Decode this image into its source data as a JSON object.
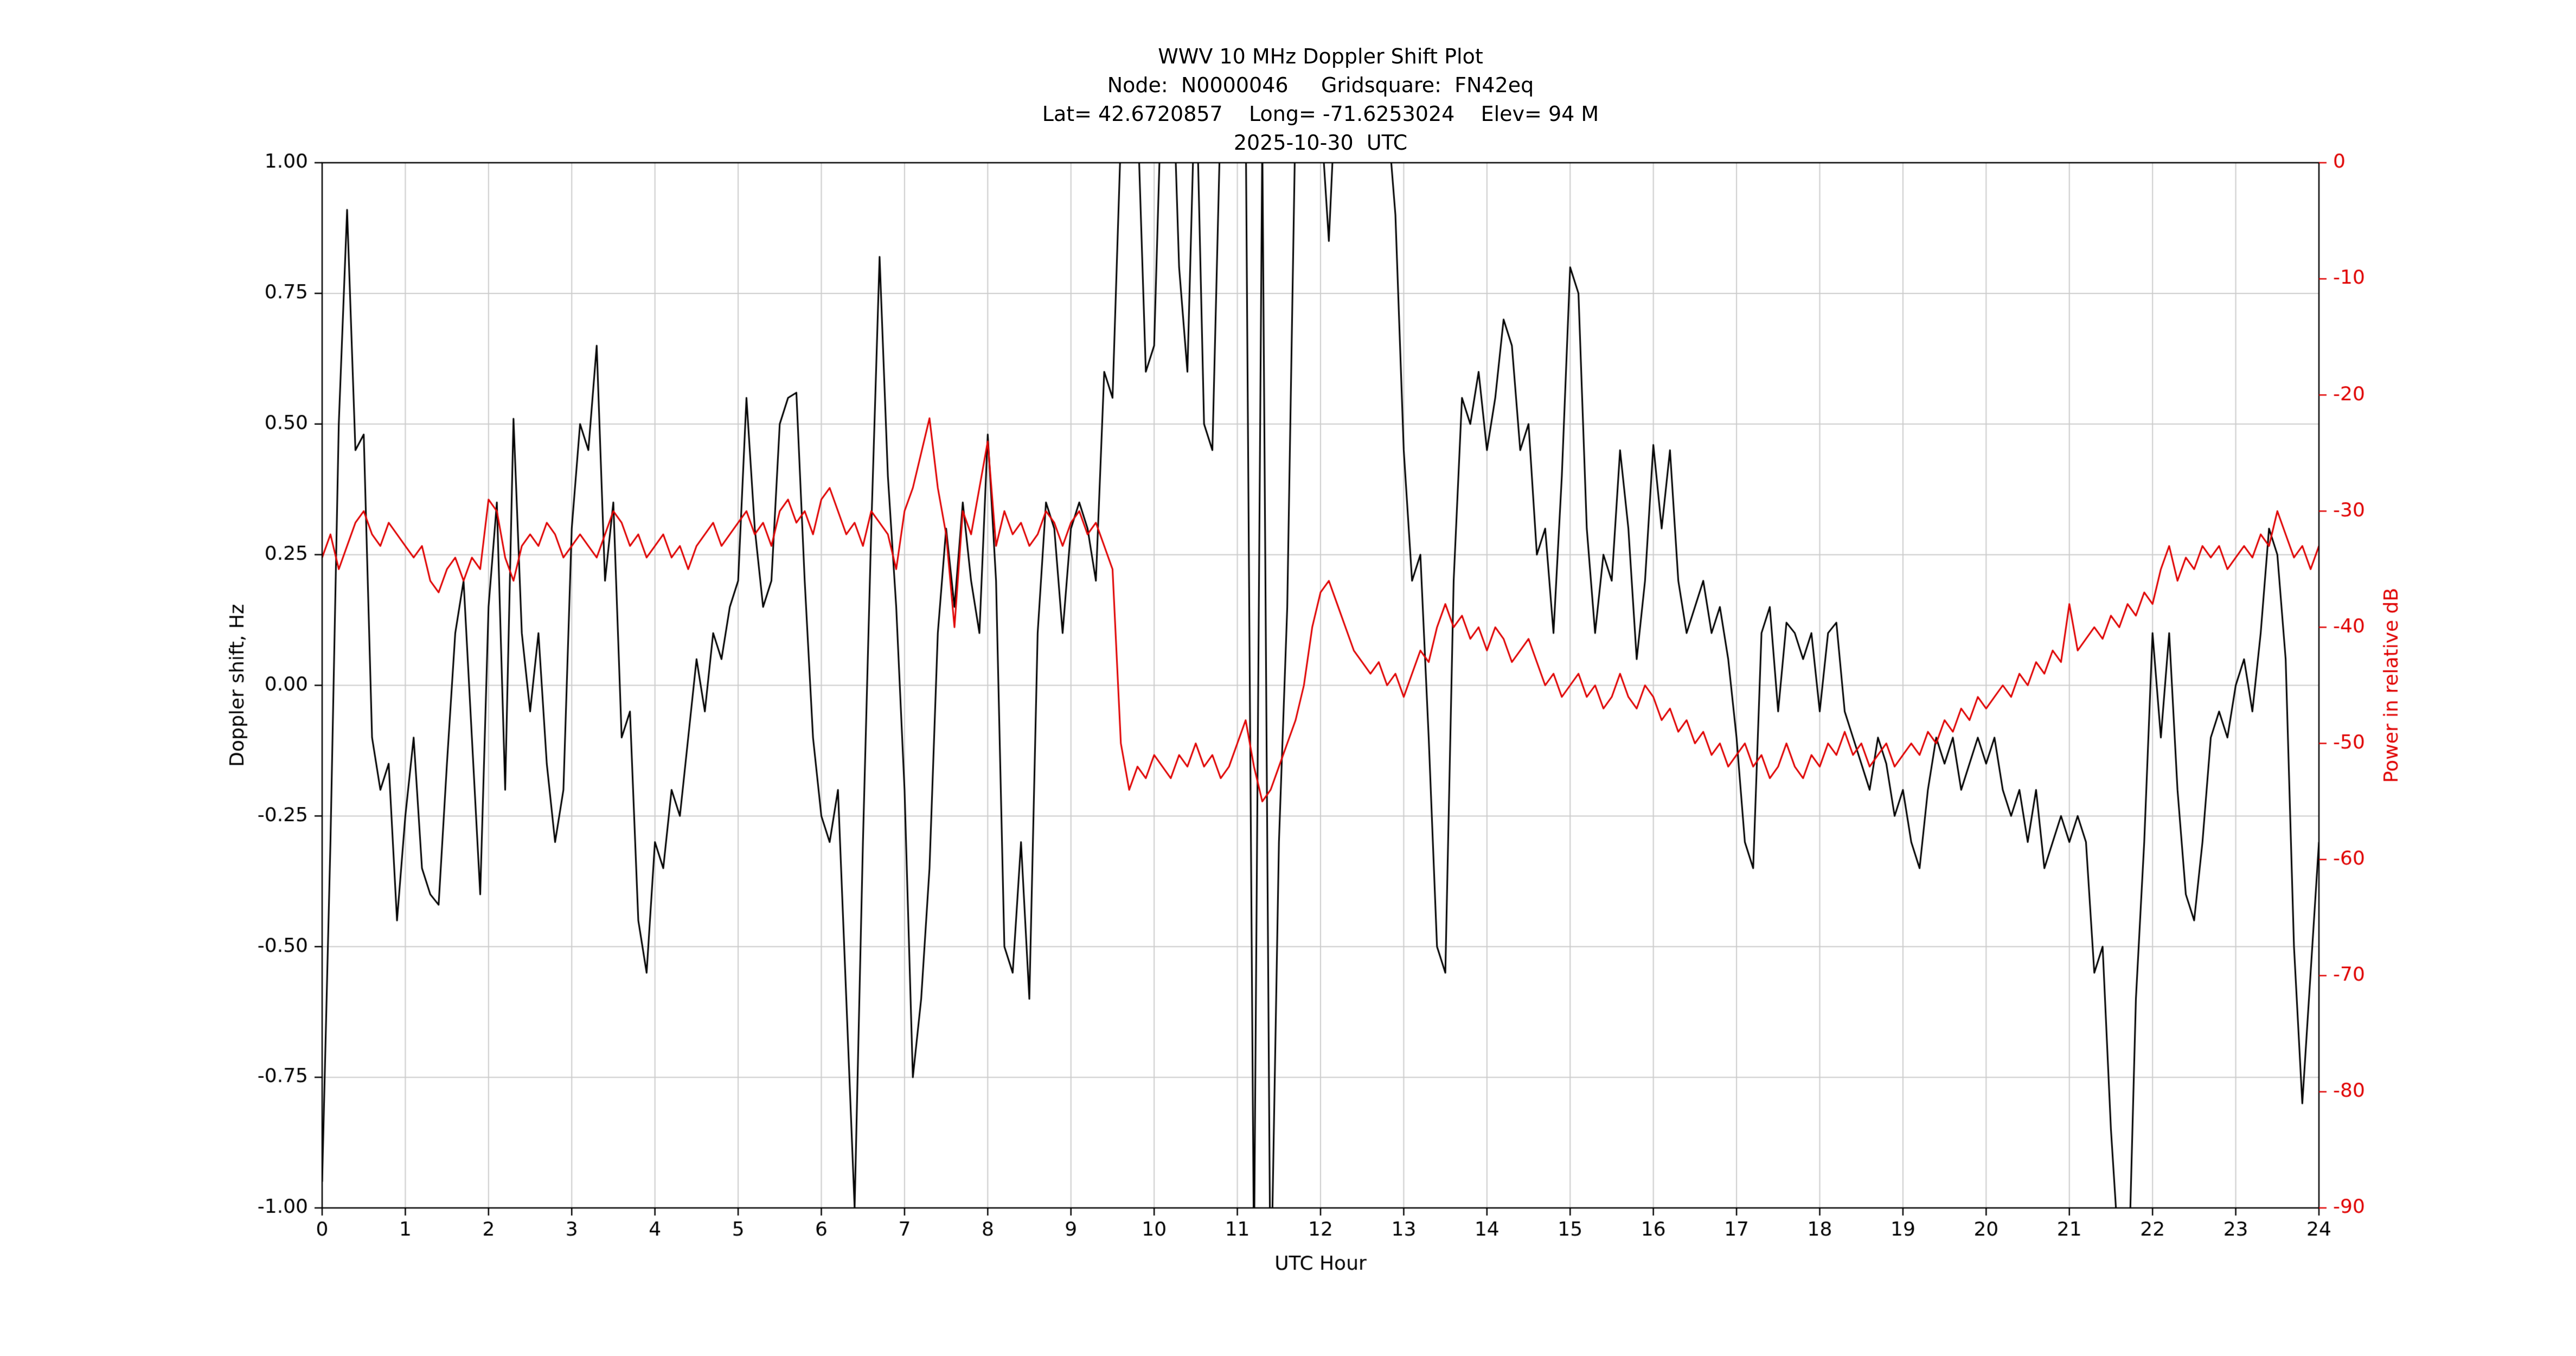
{
  "header": {
    "title": "WWV 10 MHz Doppler Shift Plot",
    "node_line": "Node:  N0000046     Gridsquare:  FN42eq",
    "location_line": "Lat= 42.6720857    Long= -71.6253024    Elev= 94 M",
    "date_line": "2025-10-30  UTC"
  },
  "colors": {
    "background": "#ffffff",
    "doppler_series": "#000000",
    "power_series": "#e00000",
    "right_axis": "#e00000",
    "grid": "#cccccc",
    "spine": "#000000"
  },
  "chart_data": {
    "type": "line",
    "title": "WWV 10 MHz Doppler Shift Plot",
    "xlabel": "UTC Hour",
    "ylabel_left": "Doppler shift, Hz",
    "ylabel_right": "Power in relative dB",
    "x_range": [
      0,
      24
    ],
    "y_left_range": [
      -1.0,
      1.0
    ],
    "y_right_range": [
      -90,
      0
    ],
    "grid": true,
    "legend": "none",
    "grid_color": "#cccccc",
    "right_axis_color": "#e00000",
    "x_ticks": [
      0,
      1,
      2,
      3,
      4,
      5,
      6,
      7,
      8,
      9,
      10,
      11,
      12,
      13,
      14,
      15,
      16,
      17,
      18,
      19,
      20,
      21,
      22,
      23,
      24
    ],
    "x_tick_labels": [
      "0",
      "1",
      "2",
      "3",
      "4",
      "5",
      "6",
      "7",
      "8",
      "9",
      "10",
      "11",
      "12",
      "13",
      "14",
      "15",
      "16",
      "17",
      "18",
      "19",
      "20",
      "21",
      "22",
      "23",
      "24"
    ],
    "y_left_ticks": [
      1.0,
      0.75,
      0.5,
      0.25,
      0.0,
      -0.25,
      -0.5,
      -0.75,
      -1.0
    ],
    "y_left_tick_labels": [
      "1.00",
      "0.75",
      "0.50",
      "0.25",
      "0.00",
      "-0.25",
      "-0.50",
      "-0.75",
      "-1.00"
    ],
    "y_right_ticks": [
      0,
      -10,
      -20,
      -30,
      -40,
      -50,
      -60,
      -70,
      -80,
      -90
    ],
    "y_right_tick_labels": [
      "0",
      "-10",
      "-20",
      "-30",
      "-40",
      "-50",
      "-60",
      "-70",
      "-80",
      "-90"
    ],
    "series": [
      {
        "name": "doppler_shift_hz",
        "axis": "left",
        "color": "#000000",
        "width": 3,
        "x_start": 0,
        "x_step": 0.1,
        "values": [
          -0.95,
          -0.3,
          0.5,
          0.91,
          0.45,
          0.48,
          -0.1,
          -0.2,
          -0.15,
          -0.45,
          -0.25,
          -0.1,
          -0.35,
          -0.4,
          -0.42,
          -0.15,
          0.1,
          0.2,
          -0.1,
          -0.4,
          0.15,
          0.35,
          -0.2,
          0.51,
          0.1,
          -0.05,
          0.1,
          -0.15,
          -0.3,
          -0.2,
          0.3,
          0.5,
          0.45,
          0.65,
          0.2,
          0.35,
          -0.1,
          -0.05,
          -0.45,
          -0.55,
          -0.3,
          -0.35,
          -0.2,
          -0.25,
          -0.1,
          0.05,
          -0.05,
          0.1,
          0.05,
          0.15,
          0.2,
          0.55,
          0.3,
          0.15,
          0.2,
          0.5,
          0.55,
          0.56,
          0.2,
          -0.1,
          -0.25,
          -0.3,
          -0.2,
          -0.6,
          -1.0,
          -0.3,
          0.3,
          0.82,
          0.4,
          0.15,
          -0.2,
          -0.75,
          -0.6,
          -0.35,
          0.1,
          0.3,
          0.15,
          0.35,
          0.2,
          0.1,
          0.48,
          0.2,
          -0.5,
          -0.55,
          -0.3,
          -0.6,
          0.1,
          0.35,
          0.3,
          0.1,
          0.3,
          0.35,
          0.3,
          0.2,
          0.6,
          0.55,
          1.05,
          1.2,
          1.1,
          0.6,
          0.65,
          1.2,
          1.3,
          0.8,
          0.6,
          1.2,
          0.5,
          0.45,
          1.1,
          1.3,
          1.2,
          1.1,
          -1.1,
          1.05,
          -1.2,
          -0.3,
          0.15,
          1.1,
          1.3,
          1.2,
          1.1,
          0.85,
          1.2,
          1.3,
          1.1,
          1.25,
          1.3,
          1.2,
          1.1,
          0.9,
          0.45,
          0.2,
          0.25,
          -0.1,
          -0.5,
          -0.55,
          0.2,
          0.55,
          0.5,
          0.6,
          0.45,
          0.55,
          0.7,
          0.65,
          0.45,
          0.5,
          0.25,
          0.3,
          0.1,
          0.4,
          0.8,
          0.75,
          0.3,
          0.1,
          0.25,
          0.2,
          0.45,
          0.3,
          0.05,
          0.2,
          0.46,
          0.3,
          0.45,
          0.2,
          0.1,
          0.15,
          0.2,
          0.1,
          0.15,
          0.05,
          -0.1,
          -0.3,
          -0.35,
          0.1,
          0.15,
          -0.05,
          0.12,
          0.1,
          0.05,
          0.1,
          -0.05,
          0.1,
          0.12,
          -0.05,
          -0.1,
          -0.15,
          -0.2,
          -0.1,
          -0.15,
          -0.25,
          -0.2,
          -0.3,
          -0.35,
          -0.2,
          -0.1,
          -0.15,
          -0.1,
          -0.2,
          -0.15,
          -0.1,
          -0.15,
          -0.1,
          -0.2,
          -0.25,
          -0.2,
          -0.3,
          -0.2,
          -0.35,
          -0.3,
          -0.25,
          -0.3,
          -0.25,
          -0.3,
          -0.55,
          -0.5,
          -0.85,
          -1.1,
          -1.2,
          -0.6,
          -0.3,
          0.1,
          -0.1,
          0.1,
          -0.2,
          -0.4,
          -0.45,
          -0.3,
          -0.1,
          -0.05,
          -0.1,
          0.0,
          0.05,
          -0.05,
          0.1,
          0.3,
          0.25,
          0.05,
          -0.5,
          -0.8,
          -0.55,
          -0.3
        ]
      },
      {
        "name": "power_relative_db",
        "axis": "right",
        "color": "#e00000",
        "width": 3,
        "x_start": 0,
        "x_step": 0.1,
        "values": [
          -34,
          -32,
          -35,
          -33,
          -31,
          -30,
          -32,
          -33,
          -31,
          -32,
          -33,
          -34,
          -33,
          -36,
          -37,
          -35,
          -34,
          -36,
          -34,
          -35,
          -29,
          -30,
          -34,
          -36,
          -33,
          -32,
          -33,
          -31,
          -32,
          -34,
          -33,
          -32,
          -33,
          -34,
          -32,
          -30,
          -31,
          -33,
          -32,
          -34,
          -33,
          -32,
          -34,
          -33,
          -35,
          -33,
          -32,
          -31,
          -33,
          -32,
          -31,
          -30,
          -32,
          -31,
          -33,
          -30,
          -29,
          -31,
          -30,
          -32,
          -29,
          -28,
          -30,
          -32,
          -31,
          -33,
          -30,
          -31,
          -32,
          -35,
          -30,
          -28,
          -25,
          -22,
          -28,
          -32,
          -40,
          -30,
          -32,
          -28,
          -24,
          -33,
          -30,
          -32,
          -31,
          -33,
          -32,
          -30,
          -31,
          -33,
          -31,
          -30,
          -32,
          -31,
          -33,
          -35,
          -50,
          -54,
          -52,
          -53,
          -51,
          -52,
          -53,
          -51,
          -52,
          -50,
          -52,
          -51,
          -53,
          -52,
          -50,
          -48,
          -52,
          -55,
          -54,
          -52,
          -50,
          -48,
          -45,
          -40,
          -37,
          -36,
          -38,
          -40,
          -42,
          -43,
          -44,
          -43,
          -45,
          -44,
          -46,
          -44,
          -42,
          -43,
          -40,
          -38,
          -40,
          -39,
          -41,
          -40,
          -42,
          -40,
          -41,
          -43,
          -42,
          -41,
          -43,
          -45,
          -44,
          -46,
          -45,
          -44,
          -46,
          -45,
          -47,
          -46,
          -44,
          -46,
          -47,
          -45,
          -46,
          -48,
          -47,
          -49,
          -48,
          -50,
          -49,
          -51,
          -50,
          -52,
          -51,
          -50,
          -52,
          -51,
          -53,
          -52,
          -50,
          -52,
          -53,
          -51,
          -52,
          -50,
          -51,
          -49,
          -51,
          -50,
          -52,
          -51,
          -50,
          -52,
          -51,
          -50,
          -51,
          -49,
          -50,
          -48,
          -49,
          -47,
          -48,
          -46,
          -47,
          -46,
          -45,
          -46,
          -44,
          -45,
          -43,
          -44,
          -42,
          -43,
          -38,
          -42,
          -41,
          -40,
          -41,
          -39,
          -40,
          -38,
          -39,
          -37,
          -38,
          -35,
          -33,
          -36,
          -34,
          -35,
          -33,
          -34,
          -33,
          -35,
          -34,
          -33,
          -34,
          -32,
          -33,
          -30,
          -32,
          -34,
          -33,
          -35,
          -33
        ]
      }
    ]
  }
}
